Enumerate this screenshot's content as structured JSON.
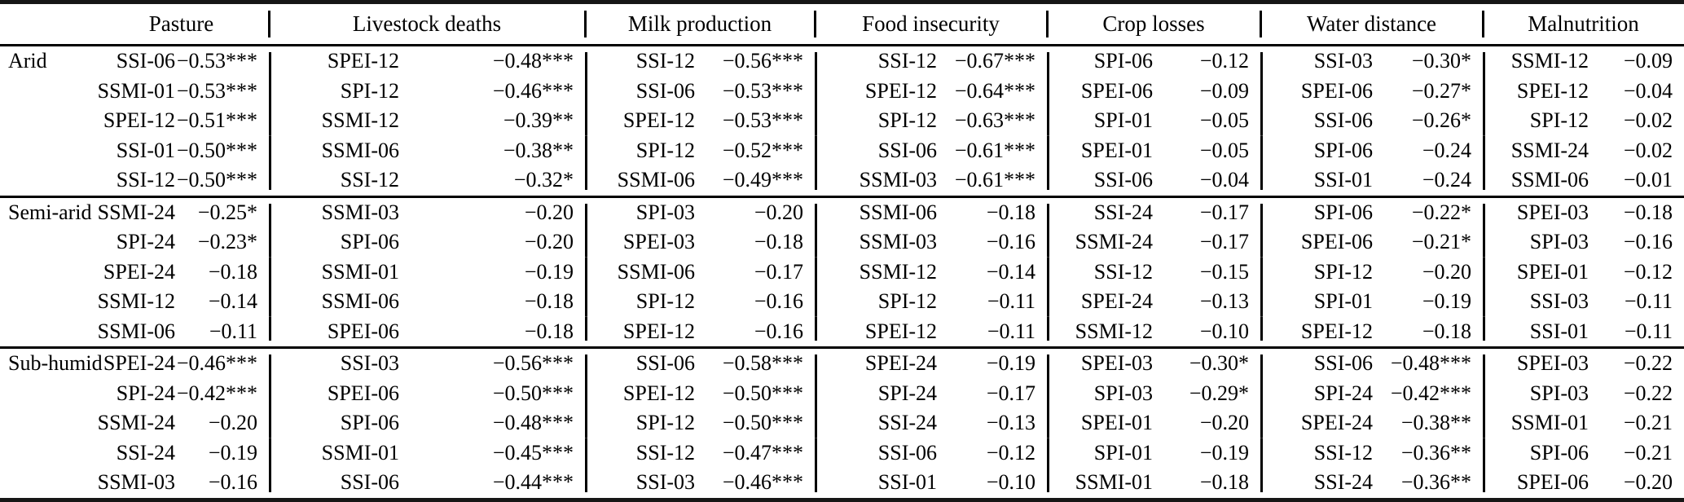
{
  "table": {
    "impact_columns": [
      "Pasture",
      "Livestock deaths",
      "Milk production",
      "Food insecurity",
      "Crop losses",
      "Water distance",
      "Malnutrition"
    ],
    "zones": [
      {
        "label": "Arid",
        "impacts": [
          [
            [
              "SSI-06",
              "−0.53***"
            ],
            [
              "SSMI-01",
              "−0.53***"
            ],
            [
              "SPEI-12",
              "−0.51***"
            ],
            [
              "SSI-01",
              "−0.50***"
            ],
            [
              "SSI-12",
              "−0.50***"
            ]
          ],
          [
            [
              "SPEI-12",
              "−0.48***"
            ],
            [
              "SPI-12",
              "−0.46***"
            ],
            [
              "SSMI-12",
              "−0.39**"
            ],
            [
              "SSMI-06",
              "−0.38**"
            ],
            [
              "SSI-12",
              "−0.32*"
            ]
          ],
          [
            [
              "SSI-12",
              "−0.56***"
            ],
            [
              "SSI-06",
              "−0.53***"
            ],
            [
              "SPEI-12",
              "−0.53***"
            ],
            [
              "SPI-12",
              "−0.52***"
            ],
            [
              "SSMI-06",
              "−0.49***"
            ]
          ],
          [
            [
              "SSI-12",
              "−0.67***"
            ],
            [
              "SPEI-12",
              "−0.64***"
            ],
            [
              "SPI-12",
              "−0.63***"
            ],
            [
              "SSI-06",
              "−0.61***"
            ],
            [
              "SSMI-03",
              "−0.61***"
            ]
          ],
          [
            [
              "SPI-06",
              "−0.12"
            ],
            [
              "SPEI-06",
              "−0.09"
            ],
            [
              "SPI-01",
              "−0.05"
            ],
            [
              "SPEI-01",
              "−0.05"
            ],
            [
              "SSI-06",
              "−0.04"
            ]
          ],
          [
            [
              "SSI-03",
              "−0.30*"
            ],
            [
              "SPEI-06",
              "−0.27*"
            ],
            [
              "SSI-06",
              "−0.26*"
            ],
            [
              "SPI-06",
              "−0.24"
            ],
            [
              "SSI-01",
              "−0.24"
            ]
          ],
          [
            [
              "SSMI-12",
              "−0.09"
            ],
            [
              "SPEI-12",
              "−0.04"
            ],
            [
              "SPI-12",
              "−0.02"
            ],
            [
              "SSMI-24",
              "−0.02"
            ],
            [
              "SSMI-06",
              "−0.01"
            ]
          ]
        ]
      },
      {
        "label": "Semi-arid",
        "impacts": [
          [
            [
              "SSMI-24",
              "−0.25*"
            ],
            [
              "SPI-24",
              "−0.23*"
            ],
            [
              "SPEI-24",
              "−0.18"
            ],
            [
              "SSMI-12",
              "−0.14"
            ],
            [
              "SSMI-06",
              "−0.11"
            ]
          ],
          [
            [
              "SSMI-03",
              "−0.20"
            ],
            [
              "SPI-06",
              "−0.20"
            ],
            [
              "SSMI-01",
              "−0.19"
            ],
            [
              "SSMI-06",
              "−0.18"
            ],
            [
              "SPEI-06",
              "−0.18"
            ]
          ],
          [
            [
              "SPI-03",
              "−0.20"
            ],
            [
              "SPEI-03",
              "−0.18"
            ],
            [
              "SSMI-06",
              "−0.17"
            ],
            [
              "SPI-12",
              "−0.16"
            ],
            [
              "SPEI-12",
              "−0.16"
            ]
          ],
          [
            [
              "SSMI-06",
              "−0.18"
            ],
            [
              "SSMI-03",
              "−0.16"
            ],
            [
              "SSMI-12",
              "−0.14"
            ],
            [
              "SPI-12",
              "−0.11"
            ],
            [
              "SPEI-12",
              "−0.11"
            ]
          ],
          [
            [
              "SSI-24",
              "−0.17"
            ],
            [
              "SSMI-24",
              "−0.17"
            ],
            [
              "SSI-12",
              "−0.15"
            ],
            [
              "SPEI-24",
              "−0.13"
            ],
            [
              "SSMI-12",
              "−0.10"
            ]
          ],
          [
            [
              "SPI-06",
              "−0.22*"
            ],
            [
              "SPEI-06",
              "−0.21*"
            ],
            [
              "SPI-12",
              "−0.20"
            ],
            [
              "SPI-01",
              "−0.19"
            ],
            [
              "SPEI-12",
              "−0.18"
            ]
          ],
          [
            [
              "SPEI-03",
              "−0.18"
            ],
            [
              "SPI-03",
              "−0.16"
            ],
            [
              "SPEI-01",
              "−0.12"
            ],
            [
              "SSI-03",
              "−0.11"
            ],
            [
              "SSI-01",
              "−0.11"
            ]
          ]
        ]
      },
      {
        "label": "Sub-humid",
        "impacts": [
          [
            [
              "SPEI-24",
              "−0.46***"
            ],
            [
              "SPI-24",
              "−0.42***"
            ],
            [
              "SSMI-24",
              "−0.20"
            ],
            [
              "SSI-24",
              "−0.19"
            ],
            [
              "SSMI-03",
              "−0.16"
            ]
          ],
          [
            [
              "SSI-03",
              "−0.56***"
            ],
            [
              "SPEI-06",
              "−0.50***"
            ],
            [
              "SPI-06",
              "−0.48***"
            ],
            [
              "SSMI-01",
              "−0.45***"
            ],
            [
              "SSI-06",
              "−0.44***"
            ]
          ],
          [
            [
              "SSI-06",
              "−0.58***"
            ],
            [
              "SPEI-12",
              "−0.50***"
            ],
            [
              "SPI-12",
              "−0.50***"
            ],
            [
              "SSI-12",
              "−0.47***"
            ],
            [
              "SSI-03",
              "−0.46***"
            ]
          ],
          [
            [
              "SPEI-24",
              "−0.19"
            ],
            [
              "SPI-24",
              "−0.17"
            ],
            [
              "SSI-24",
              "−0.13"
            ],
            [
              "SSI-06",
              "−0.12"
            ],
            [
              "SSI-01",
              "−0.10"
            ]
          ],
          [
            [
              "SPEI-03",
              "−0.30*"
            ],
            [
              "SPI-03",
              "−0.29*"
            ],
            [
              "SPEI-01",
              "−0.20"
            ],
            [
              "SPI-01",
              "−0.19"
            ],
            [
              "SSMI-01",
              "−0.18"
            ]
          ],
          [
            [
              "SSI-06",
              "−0.48***"
            ],
            [
              "SPI-24",
              "−0.42***"
            ],
            [
              "SPEI-24",
              "−0.38**"
            ],
            [
              "SSI-12",
              "−0.36**"
            ],
            [
              "SSI-24",
              "−0.36**"
            ]
          ],
          [
            [
              "SPEI-03",
              "−0.22"
            ],
            [
              "SPI-03",
              "−0.22"
            ],
            [
              "SSMI-01",
              "−0.21"
            ],
            [
              "SPI-06",
              "−0.21"
            ],
            [
              "SPEI-06",
              "−0.20"
            ]
          ]
        ]
      }
    ]
  }
}
